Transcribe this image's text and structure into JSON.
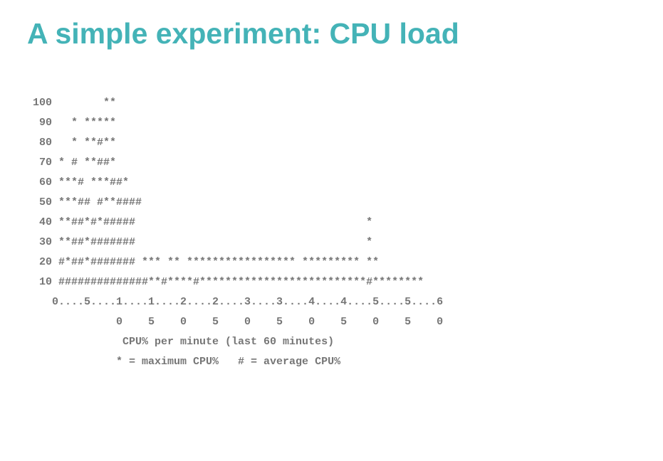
{
  "title": "A simple experiment: CPU load",
  "chart": {
    "type": "ascii-chart",
    "title_color": "#44b3b7",
    "text_color": "#767676",
    "background_color": "#ffffff",
    "font_family_body": "Courier New, monospace",
    "font_family_title": "Verdana, sans-serif",
    "title_fontsize": 41,
    "body_fontsize": 15,
    "line_height": 28,
    "font_weight": "bold",
    "lines": [
      "100        **",
      " 90   * *****",
      " 80   * **#**",
      " 70 * # **##*",
      " 60 ***# ***##*",
      " 50 ***## #**####",
      " 40 **##*#*#####                                    *",
      " 30 **##*#######                                    *",
      " 20 #*##*####### *** ** ***************** ********* **",
      " 10 ##############**#****#**************************#********",
      "   0....5....1....1....2....2....3....3....4....4....5....5....6",
      "             0    5    0    5    0    5    0    5    0    5    0",
      "              CPU% per minute (last 60 minutes)",
      "             * = maximum CPU%   # = average CPU%"
    ],
    "y_axis_values": [
      100,
      90,
      80,
      70,
      60,
      50,
      40,
      30,
      20,
      10
    ],
    "x_axis_label": "CPU% per minute (last 60 minutes)",
    "x_axis_range": [
      0,
      60
    ],
    "x_axis_tick_step": 5,
    "legend": {
      "max_cpu_symbol": "*",
      "max_cpu_label": "maximum CPU%",
      "avg_cpu_symbol": "#",
      "avg_cpu_label": "average CPU%"
    }
  }
}
